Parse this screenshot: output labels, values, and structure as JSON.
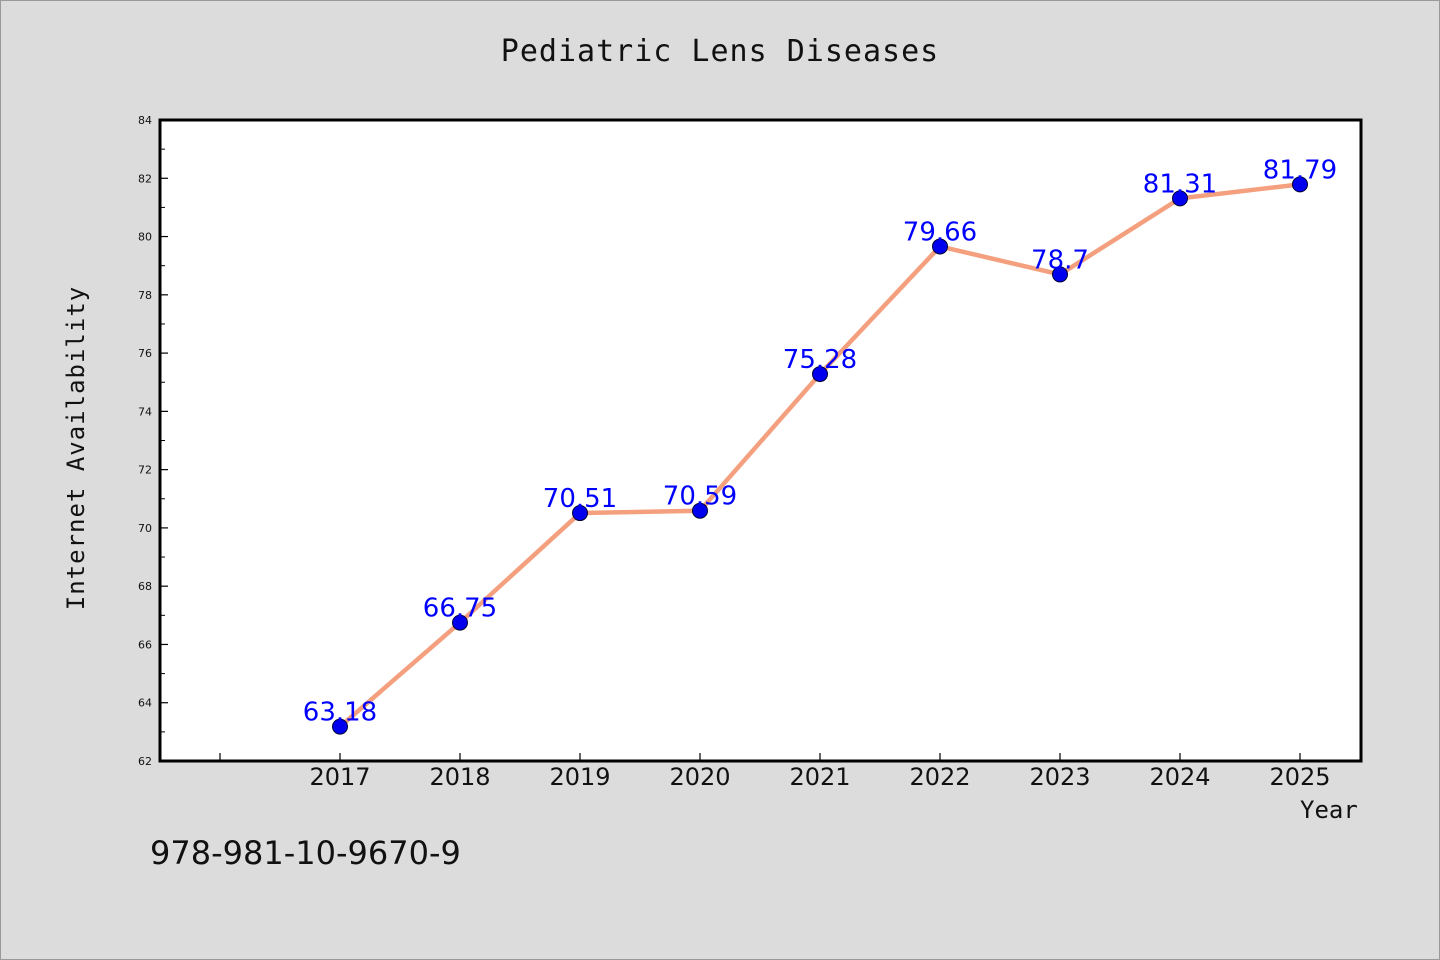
{
  "chart_data": {
    "type": "line",
    "title": "Pediatric Lens Diseases",
    "xlabel": "Year",
    "ylabel": "Internet Availability",
    "categories": [
      "2017",
      "2018",
      "2019",
      "2020",
      "2021",
      "2022",
      "2023",
      "2024",
      "2025"
    ],
    "values": [
      63.18,
      66.75,
      70.51,
      70.59,
      75.28,
      79.66,
      78.7,
      81.31,
      81.79
    ],
    "data_labels": [
      "63.18",
      "66.75",
      "70.51",
      "70.59",
      "75.28",
      "79.66",
      "78.7",
      "81.31",
      "81.79"
    ],
    "ylim": [
      62,
      84
    ],
    "yticks": [
      62,
      64,
      66,
      68,
      70,
      72,
      74,
      76,
      78,
      80,
      82,
      84
    ],
    "grid": false,
    "legend": "none",
    "colors": {
      "line": "#f4a07e",
      "marker": "#0000ee",
      "label": "#0000ff",
      "plot_background": "#ffffff",
      "page_background": "#dcdcdc"
    }
  },
  "footer": {
    "code": "978-981-10-9670-9"
  }
}
